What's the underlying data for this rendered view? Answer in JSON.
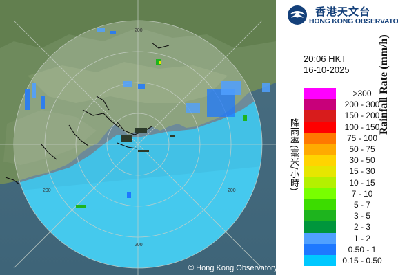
{
  "header": {
    "org_name_cn": "香港天文台",
    "org_name_en": "HONG KONG OBSERVATORY",
    "logo_icon": "hko-logo-icon"
  },
  "timestamp": {
    "time": "20:06 HKT",
    "date": "16-10-2025"
  },
  "legend": {
    "title_cn": "降雨率(毫米/小時)",
    "title_en": "Rainfall Rate (mm/h)",
    "items": [
      {
        "label": ">300",
        "color": "#ff00ff"
      },
      {
        "label": "200 - 300",
        "color": "#c8007a"
      },
      {
        "label": "150 - 200",
        "color": "#d81c1c"
      },
      {
        "label": "100 - 150",
        "color": "#ff0000"
      },
      {
        "label": "75 - 100",
        "color": "#ff7800"
      },
      {
        "label": "50 - 75",
        "color": "#ffaa00"
      },
      {
        "label": "30 - 50",
        "color": "#ffd400"
      },
      {
        "label": "15 - 30",
        "color": "#e6e600"
      },
      {
        "label": "10 - 15",
        "color": "#b4f000"
      },
      {
        "label": "7 - 10",
        "color": "#78ff00"
      },
      {
        "label": "5 - 7",
        "color": "#3cdc00"
      },
      {
        "label": "3 - 5",
        "color": "#1eb41e"
      },
      {
        "label": "2 - 3",
        "color": "#00963c"
      },
      {
        "label": "1 - 2",
        "color": "#50a0ff"
      },
      {
        "label": "0.50 - 1",
        "color": "#1e78ff"
      },
      {
        "label": "0.15 - 0.50",
        "color": "#00c8ff"
      }
    ]
  },
  "map": {
    "range_labels": [
      "200",
      "200",
      "200",
      "200"
    ],
    "copyright": "© Hong Kong Observatory"
  }
}
